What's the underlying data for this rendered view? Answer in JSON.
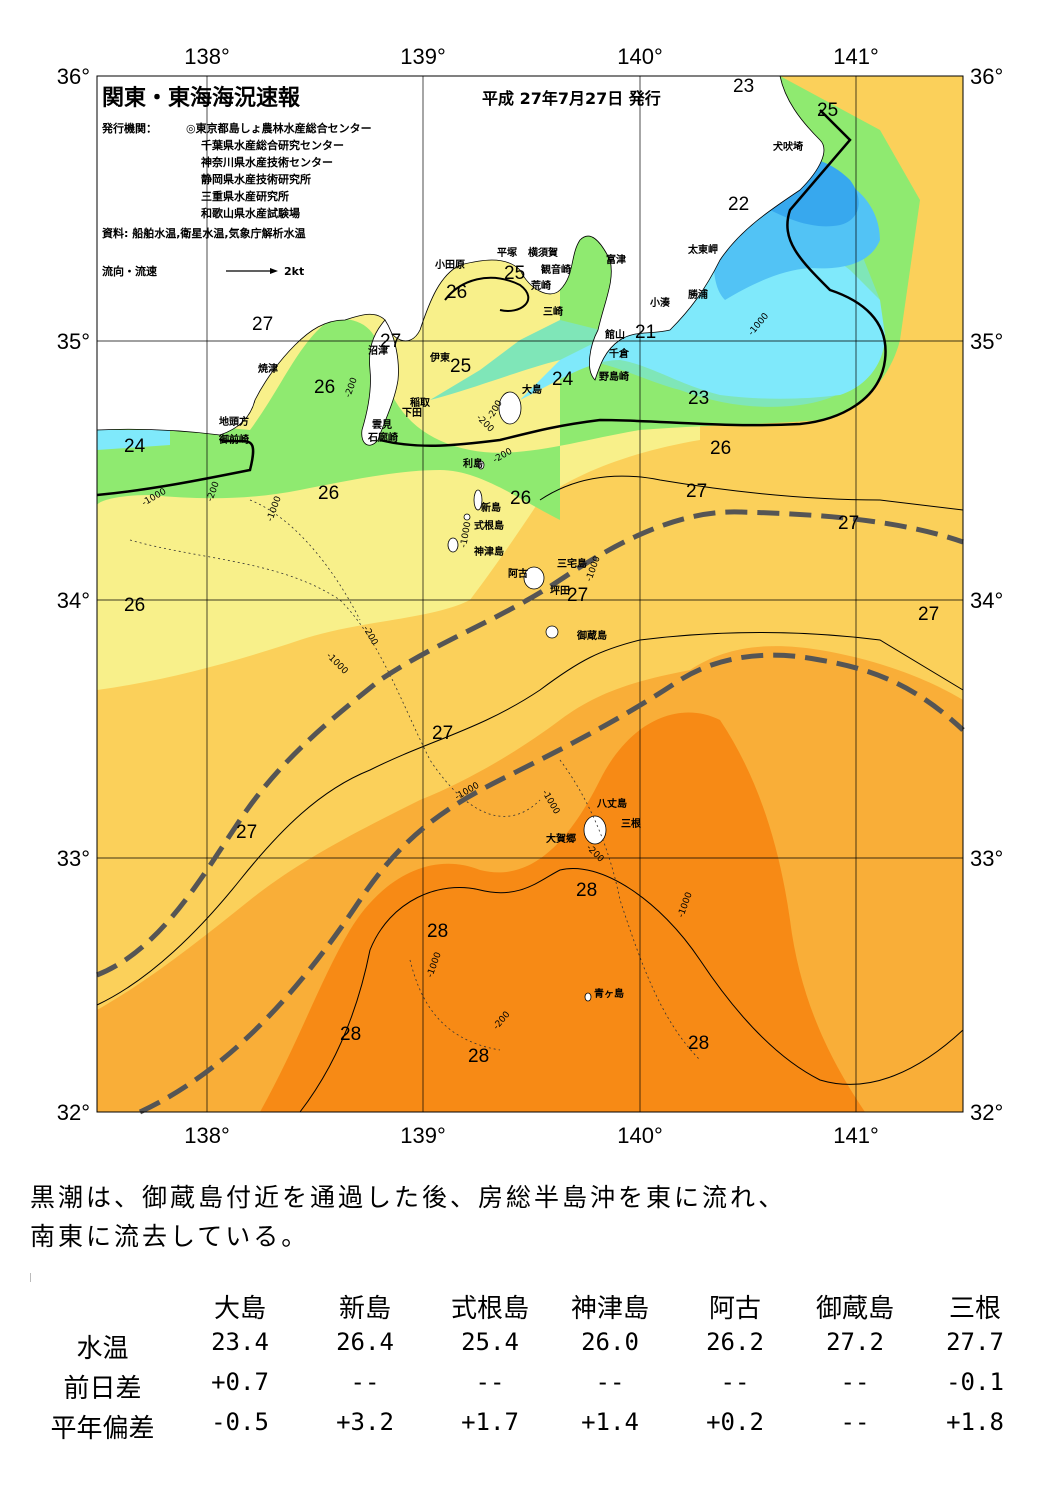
{
  "map": {
    "title": "関東・東海海況速報",
    "published": "平成 27年7月27日 発行",
    "publisher_label": "発行機関：",
    "publishers": [
      "◎東京都島しょ農林水産総合センター",
      "千葉県水産総合研究センター",
      "神奈川県水産技術センター",
      "静岡県水産技術研究所",
      "三重県水産研究所",
      "和歌山県水産試験場"
    ],
    "source": "資料: 船舶水温,衛星水温,気象庁解析水温",
    "legend_label": "流向・流速",
    "legend_speed": "2kt",
    "lon_labels": [
      "138°",
      "139°",
      "140°",
      "141°"
    ],
    "lat_labels": [
      "36°",
      "35°",
      "34°",
      "33°",
      "32°"
    ],
    "isotherm_labels": [
      "23",
      "25",
      "22",
      "21",
      "23",
      "26",
      "25",
      "27",
      "27",
      "26",
      "24",
      "25",
      "24",
      "26",
      "26",
      "26",
      "27",
      "27",
      "27",
      "26",
      "27",
      "27",
      "27",
      "28",
      "28",
      "28",
      "28",
      "28"
    ],
    "depth_labels": [
      "-200",
      "-200",
      "-1000",
      "-200",
      "-1000",
      "-200",
      "-1000",
      "-1000",
      "-200",
      "-1000",
      "-1000",
      "-1000",
      "-1000",
      "-1000",
      "-200",
      "-200",
      "-1000",
      "-200"
    ],
    "place_names": [
      "犬吠埼",
      "太東岬",
      "勝浦",
      "小湊",
      "館山",
      "千倉",
      "野島崎",
      "富津",
      "横須賀",
      "観音崎",
      "荒崎",
      "三崎",
      "平塚",
      "小田原",
      "沼津",
      "伊東",
      "大島",
      "稲取",
      "下田",
      "雲見",
      "石廊崎",
      "焼津",
      "地頭方",
      "御前崎",
      "利島",
      "新島",
      "式根島",
      "神津島",
      "阿古",
      "三宅島",
      "坪田",
      "御蔵島",
      "八丈島",
      "三根",
      "大賀郷",
      "青ヶ島"
    ]
  },
  "summary": {
    "line1": "黒潮は、御蔵島付近を通過した後、房総半島沖を東に流れ、",
    "line2": "南東に流去している。"
  },
  "table": {
    "stations": [
      "大島",
      "新島",
      "式根島",
      "神津島",
      "阿古",
      "御蔵島",
      "三根"
    ],
    "rows": [
      {
        "label": "水温",
        "values": [
          "23.4",
          "26.4",
          "25.4",
          "26.0",
          "26.2",
          "27.2",
          "27.7"
        ]
      },
      {
        "label": "前日差",
        "values": [
          "+0.7",
          "--",
          "--",
          "--",
          "--",
          "--",
          "-0.1"
        ]
      },
      {
        "label": "平年偏差",
        "values": [
          "-0.5",
          "+3.2",
          "+1.7",
          "+1.4",
          "+0.2",
          "--",
          "+1.8"
        ]
      }
    ]
  },
  "colors": {
    "temp_21": "#37a8ee",
    "temp_22": "#52c3f5",
    "temp_23": "#7fe9fb",
    "temp_24": "#7fe6b8",
    "temp_25": "#8fea70",
    "temp_26": "#f8f08a",
    "temp_27": "#fbd05a",
    "temp_27_5": "#f9ae38",
    "temp_28": "#f78a15",
    "land": "#ffffff",
    "kuroshio_path": "#555555"
  }
}
